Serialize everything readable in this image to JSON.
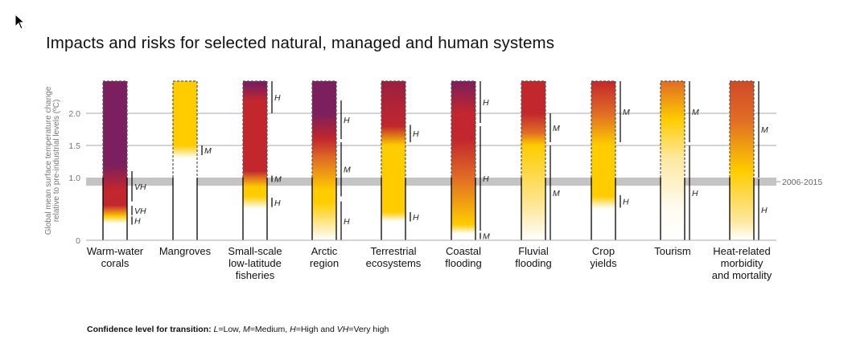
{
  "chart_data": {
    "type": "bar",
    "title": "Impacts and risks for selected natural, managed and human systems",
    "ylabel": "Global mean surface temperature change relative to pre-industrial levels (ºC)",
    "yticks": [
      "0",
      "1.0",
      "1.5",
      "2.0"
    ],
    "ylim": [
      0,
      2.5
    ],
    "reference_band": {
      "label": "2006-2015",
      "range": [
        0.87,
        1.0
      ]
    },
    "colors": {
      "undetectable": "#ffffff",
      "moderate": "#ffcc00",
      "high": "#c1272d",
      "very_high": "#7b1f5e",
      "transition": "#e06c25"
    },
    "categories": [
      "Warm-water corals",
      "Mangroves",
      "Small-scale low-latitude fisheries",
      "Arctic region",
      "Terrestrial ecosystems",
      "Coastal flooding",
      "Fluvial flooding",
      "Crop yields",
      "Tourism",
      "Heat-related morbidity and mortality"
    ],
    "category_labels": [
      [
        "Warm-water",
        "corals"
      ],
      [
        "Mangroves"
      ],
      [
        "Small-scale",
        "low-latitude",
        "fisheries"
      ],
      [
        "Arctic",
        "region"
      ],
      [
        "Terrestrial",
        "ecosystems"
      ],
      [
        "Coastal",
        "flooding"
      ],
      [
        "Fluvial",
        "flooding"
      ],
      [
        "Crop",
        "yields"
      ],
      [
        "Tourism"
      ],
      [
        "Heat-related",
        "morbidity",
        "and mortality"
      ]
    ],
    "bars": [
      {
        "stops": [
          [
            0.0,
            "#ffffff"
          ],
          [
            0.27,
            "#ffffff"
          ],
          [
            0.38,
            "#ffcc00"
          ],
          [
            0.48,
            "#e06c25"
          ],
          [
            0.56,
            "#c1272d"
          ],
          [
            0.8,
            "#c1272d"
          ],
          [
            1.2,
            "#7b1f5e"
          ],
          [
            2.5,
            "#7b1f5e"
          ]
        ],
        "confidence": [
          {
            "range": [
              0.62,
              1.1
            ],
            "label": "VH"
          },
          {
            "range": [
              0.4,
              0.55
            ],
            "label": "VH"
          },
          {
            "range": [
              0.25,
              0.38
            ],
            "label": "H"
          }
        ]
      },
      {
        "stops": [
          [
            0.0,
            "#ffffff"
          ],
          [
            1.3,
            "#ffffff"
          ],
          [
            1.5,
            "#ffcc00"
          ],
          [
            2.5,
            "#ffcc00"
          ]
        ],
        "confidence": [
          {
            "range": [
              1.35,
              1.5
            ],
            "label": "M"
          }
        ]
      },
      {
        "stops": [
          [
            0.0,
            "#ffffff"
          ],
          [
            0.5,
            "#ffffff"
          ],
          [
            0.7,
            "#ffcc00"
          ],
          [
            0.85,
            "#ffcc00"
          ],
          [
            1.0,
            "#e06c25"
          ],
          [
            1.1,
            "#c1272d"
          ],
          [
            2.2,
            "#c1272d"
          ],
          [
            2.45,
            "#7b1f5e"
          ],
          [
            2.5,
            "#7b1f5e"
          ]
        ],
        "confidence": [
          {
            "range": [
              2.0,
              2.5
            ],
            "label": "H"
          },
          {
            "range": [
              0.93,
              1.03
            ],
            "label": "M"
          },
          {
            "range": [
              0.53,
              0.68
            ],
            "label": "H"
          }
        ]
      },
      {
        "stops": [
          [
            0.0,
            "#ffffff"
          ],
          [
            0.1,
            "#fff5d6"
          ],
          [
            0.6,
            "#ffcc00"
          ],
          [
            0.8,
            "#ffcc00"
          ],
          [
            1.3,
            "#e06c25"
          ],
          [
            1.6,
            "#c1272d"
          ],
          [
            2.0,
            "#7b1f5e"
          ],
          [
            2.5,
            "#7b1f5e"
          ]
        ],
        "confidence": [
          {
            "range": [
              1.6,
              2.2
            ],
            "label": "H"
          },
          {
            "range": [
              0.7,
              1.55
            ],
            "label": "M"
          },
          {
            "range": [
              0.0,
              0.62
            ],
            "label": "H"
          }
        ]
      },
      {
        "stops": [
          [
            0.0,
            "#ffffff"
          ],
          [
            0.3,
            "#ffffff"
          ],
          [
            0.45,
            "#ffcc00"
          ],
          [
            1.5,
            "#ffcc00"
          ],
          [
            1.8,
            "#c1272d"
          ],
          [
            2.5,
            "#9b2040"
          ]
        ],
        "confidence": [
          {
            "range": [
              1.55,
              1.82
            ],
            "label": "H"
          },
          {
            "range": [
              0.3,
              0.45
            ],
            "label": "H"
          }
        ]
      },
      {
        "stops": [
          [
            0.0,
            "#ffffff"
          ],
          [
            0.1,
            "#ffffff"
          ],
          [
            0.25,
            "#ffcc00"
          ],
          [
            1.0,
            "#e06c25"
          ],
          [
            1.6,
            "#c1272d"
          ],
          [
            2.0,
            "#c1272d"
          ],
          [
            2.5,
            "#7b1f5e"
          ]
        ],
        "confidence": [
          {
            "range": [
              1.85,
              2.5
            ],
            "label": "H"
          },
          {
            "range": [
              0.15,
              1.8
            ],
            "label": "H"
          },
          {
            "range": [
              0.02,
              0.12
            ],
            "label": "M"
          }
        ]
      },
      {
        "stops": [
          [
            0.0,
            "#ffffff"
          ],
          [
            0.5,
            "#fde8a0"
          ],
          [
            1.5,
            "#ffcc00"
          ],
          [
            1.7,
            "#e06c25"
          ],
          [
            2.0,
            "#c1272d"
          ],
          [
            2.5,
            "#c1272d"
          ]
        ],
        "confidence": [
          {
            "range": [
              1.55,
              2.0
            ],
            "label": "M"
          },
          {
            "range": [
              0.0,
              1.5
            ],
            "label": "M"
          }
        ]
      },
      {
        "stops": [
          [
            0.0,
            "#ffffff"
          ],
          [
            0.5,
            "#ffffff"
          ],
          [
            0.7,
            "#ffcc00"
          ],
          [
            1.5,
            "#ffcc00"
          ],
          [
            2.0,
            "#e06c25"
          ],
          [
            2.5,
            "#c1272d"
          ]
        ],
        "confidence": [
          {
            "range": [
              1.55,
              2.5
            ],
            "label": "M"
          },
          {
            "range": [
              0.52,
              0.72
            ],
            "label": "H"
          }
        ]
      },
      {
        "stops": [
          [
            0.0,
            "#ffffff"
          ],
          [
            0.5,
            "#fffbf0"
          ],
          [
            1.3,
            "#fde8a0"
          ],
          [
            1.9,
            "#ffcc00"
          ],
          [
            2.5,
            "#e06c25"
          ]
        ],
        "confidence": [
          {
            "range": [
              1.55,
              2.5
            ],
            "label": "M"
          },
          {
            "range": [
              0.0,
              1.5
            ],
            "label": "H"
          }
        ]
      },
      {
        "stops": [
          [
            0.0,
            "#ffffff"
          ],
          [
            0.3,
            "#fde8a0"
          ],
          [
            1.1,
            "#ffcc00"
          ],
          [
            1.9,
            "#e06c25"
          ],
          [
            2.5,
            "#d04a28"
          ]
        ],
        "confidence": [
          {
            "range": [
              1.0,
              2.5
            ],
            "label": "M"
          },
          {
            "range": [
              0.0,
              0.98
            ],
            "label": "H"
          }
        ]
      }
    ]
  },
  "footnote": {
    "bold": "Confidence level  for transition:",
    "items": [
      {
        "abbr": "L",
        "text": "=Low, "
      },
      {
        "abbr": "M",
        "text": "=Medium, "
      },
      {
        "abbr": "H",
        "text": "=High and "
      },
      {
        "abbr": "VH",
        "text": "=Very high"
      }
    ]
  }
}
